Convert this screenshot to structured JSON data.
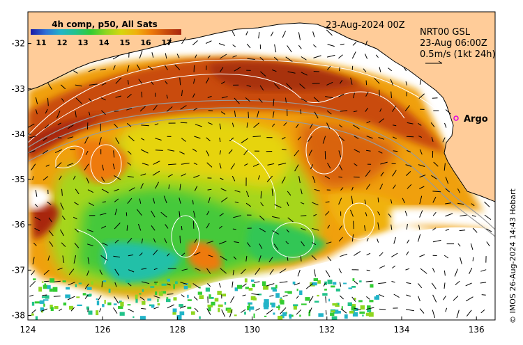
{
  "map": {
    "title": "4h comp, p50, All Sats",
    "date_label": "23-Aug-2024 00Z",
    "current_source": "NRT00 GSL",
    "current_time": "23-Aug 06:00Z",
    "scale_label": "0.5m/s (1kt 24h)",
    "argo_label": "Argo",
    "credit": "© IMOS 26-Aug-2024 14:43 Hobart",
    "lon_range": [
      124,
      136.5
    ],
    "lat_range": [
      -38.1,
      -31.3
    ],
    "x_ticks": [
      "124",
      "126",
      "128",
      "130",
      "132",
      "134",
      "136"
    ],
    "y_ticks": [
      "-32",
      "-33",
      "-34",
      "-35",
      "-36",
      "-37",
      "-38"
    ]
  },
  "colorbar": {
    "ticks": [
      "11",
      "12",
      "13",
      "14",
      "15",
      "16",
      "17"
    ],
    "min": 10.5,
    "max": 17.7,
    "colors": [
      "#1a1aa6",
      "#2e6fd6",
      "#22b4c8",
      "#22c38a",
      "#33cc33",
      "#8fd61f",
      "#d6d60f",
      "#f0b20f",
      "#ee7a0a",
      "#c94c0c",
      "#a8260e"
    ]
  },
  "colors": {
    "land": "#ffcc99",
    "coast": "#000000",
    "argo": "#e000e0",
    "contour": "#ffffff",
    "bathy": "#9a9a9a"
  }
}
